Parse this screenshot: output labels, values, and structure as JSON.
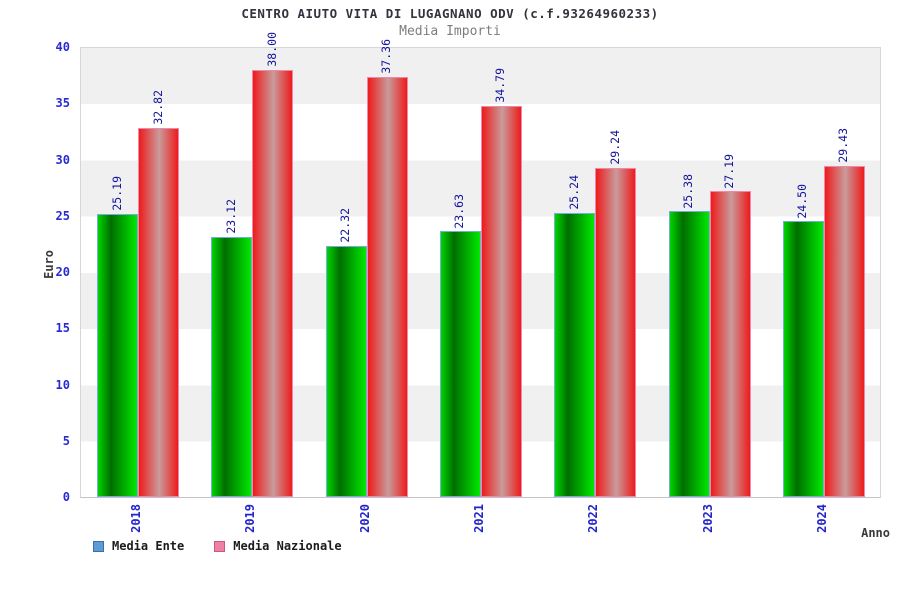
{
  "chart_data": {
    "type": "bar",
    "title": "CENTRO AIUTO VITA DI LUGAGNANO ODV (c.f.93264960233)",
    "subtitle": "Media Importi",
    "xlabel": "Anno",
    "ylabel": "Euro",
    "ylim": [
      0,
      40
    ],
    "yticks": [
      0,
      5,
      10,
      15,
      20,
      25,
      30,
      35,
      40
    ],
    "grid": "horizontal-bands-every-5",
    "legend_position": "bottom-left",
    "categories": [
      "2018",
      "2019",
      "2020",
      "2021",
      "2022",
      "2023",
      "2024"
    ],
    "series": [
      {
        "name": "Media Ente",
        "values": [
          25.19,
          23.12,
          22.32,
          23.63,
          25.24,
          25.38,
          24.5
        ],
        "value_labels": [
          "25.19",
          "23.12",
          "22.32",
          "23.63",
          "25.24",
          "25.38",
          "24.50"
        ],
        "legend_color": "#5c9bd6",
        "legend_border": "#3a6ea8",
        "bar_border": "#74aede",
        "gradient_stops": [
          [
            "#00d400",
            0
          ],
          [
            "#006e00",
            33
          ],
          [
            "#00e800",
            100
          ]
        ]
      },
      {
        "name": "Media Nazionale",
        "values": [
          32.82,
          38.0,
          37.36,
          34.79,
          29.24,
          27.19,
          29.43
        ],
        "value_labels": [
          "32.82",
          "38.00",
          "37.36",
          "34.79",
          "29.24",
          "27.19",
          "29.43"
        ],
        "legend_color": "#ef7fa3",
        "legend_border": "#c45b82",
        "bar_border": "#f287ad",
        "gradient_stops": [
          [
            "#ee1b1b",
            0
          ],
          [
            "#c99b9b",
            52
          ],
          [
            "#ee1b1b",
            100
          ]
        ]
      }
    ],
    "value_label_color": "#14149b",
    "tick_label_color": "#2a2ad2",
    "band_color": "#f0f0f1"
  }
}
